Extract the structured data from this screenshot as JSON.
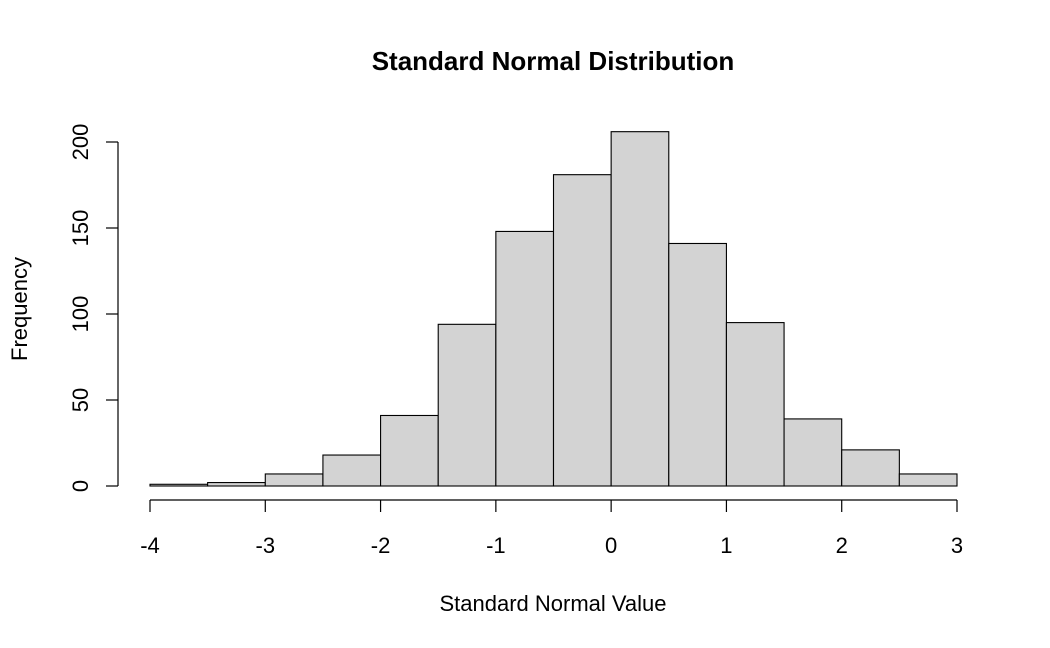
{
  "chart_data": {
    "type": "bar",
    "title": "Standard Normal Distribution",
    "xlabel": "Standard Normal Value",
    "ylabel": "Frequency",
    "bins": [
      {
        "start": -4.0,
        "end": -3.5,
        "count": 1
      },
      {
        "start": -3.5,
        "end": -3.0,
        "count": 2
      },
      {
        "start": -3.0,
        "end": -2.5,
        "count": 7
      },
      {
        "start": -2.5,
        "end": -2.0,
        "count": 18
      },
      {
        "start": -2.0,
        "end": -1.5,
        "count": 41
      },
      {
        "start": -1.5,
        "end": -1.0,
        "count": 94
      },
      {
        "start": -1.0,
        "end": -0.5,
        "count": 148
      },
      {
        "start": -0.5,
        "end": 0.0,
        "count": 181
      },
      {
        "start": 0.0,
        "end": 0.5,
        "count": 206
      },
      {
        "start": 0.5,
        "end": 1.0,
        "count": 141
      },
      {
        "start": 1.0,
        "end": 1.5,
        "count": 95
      },
      {
        "start": 1.5,
        "end": 2.0,
        "count": 39
      },
      {
        "start": 2.0,
        "end": 2.5,
        "count": 21
      },
      {
        "start": 2.5,
        "end": 3.0,
        "count": 7
      }
    ],
    "xlim": [
      -4,
      3
    ],
    "ylim": [
      0,
      200
    ],
    "xticks": [
      "-4",
      "-3",
      "-2",
      "-1",
      "0",
      "1",
      "2",
      "3"
    ],
    "yticks": [
      "0",
      "50",
      "100",
      "150",
      "200"
    ],
    "grid": false,
    "colors": {
      "bar_fill": "#d3d3d3",
      "bar_stroke": "#000000"
    }
  }
}
